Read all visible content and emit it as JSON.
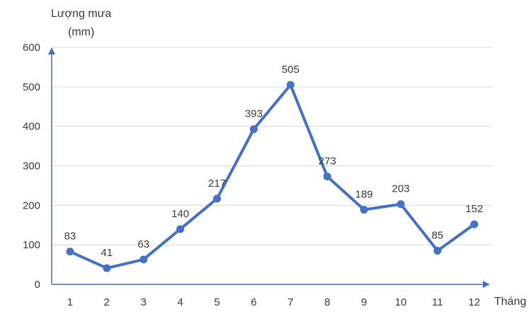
{
  "chart_data": {
    "type": "line",
    "ylabel_line1": "Lượng mưa",
    "ylabel_line2": "(mm)",
    "xlabel": "Tháng",
    "categories": [
      "1",
      "2",
      "3",
      "4",
      "5",
      "6",
      "7",
      "8",
      "9",
      "10",
      "11",
      "12"
    ],
    "series": [
      {
        "values": [
          83,
          41,
          63,
          140,
          217,
          393,
          505,
          273,
          189,
          203,
          85,
          152
        ]
      }
    ],
    "ylim": [
      0,
      600
    ],
    "yticks": [
      "0",
      "100",
      "200",
      "300",
      "400",
      "500",
      "600"
    ],
    "grid": true,
    "line_color": "#4472C4",
    "axis_color": "#4472C4",
    "grid_color": "#D9D9D9"
  }
}
